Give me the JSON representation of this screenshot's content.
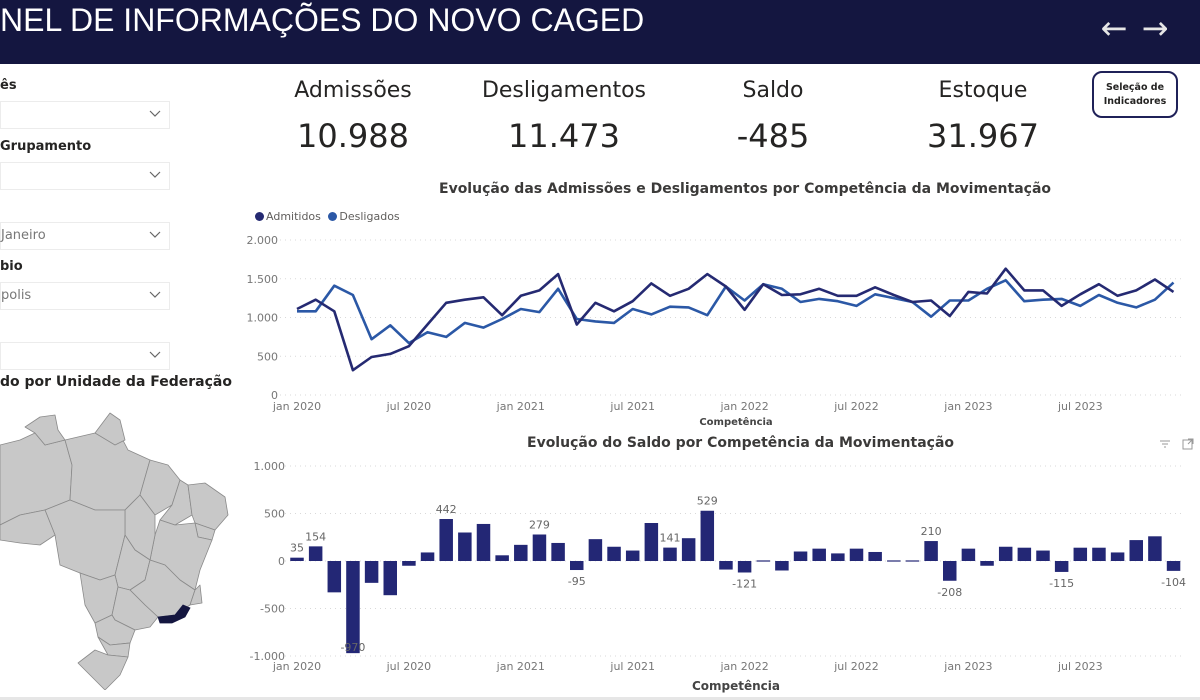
{
  "header": {
    "title": "NEL DE INFORMAÇÕES DO NOVO CAGED",
    "back_icon": "←",
    "forward_icon": "→"
  },
  "filters": [
    {
      "label": "ês",
      "value": ""
    },
    {
      "label": "Grupamento",
      "value": ""
    },
    {
      "label": "",
      "value": "Janeiro"
    },
    {
      "label": "bio",
      "value": "polis"
    },
    {
      "label": "",
      "value": ""
    }
  ],
  "map": {
    "title": "do por Unidade da Federação",
    "highlighted_state": "Rio de Janeiro",
    "base_color": "#c8c8c8",
    "highlight_color": "#141640"
  },
  "kpis": [
    {
      "label": "Admissões",
      "value": "10.988"
    },
    {
      "label": "Desligamentos",
      "value": "11.473"
    },
    {
      "label": "Saldo",
      "value": "-485"
    },
    {
      "label": "Estoque",
      "value": "31.967"
    }
  ],
  "indicator_button": {
    "line1": "Seleção de",
    "line2": "Indicadores"
  },
  "colors": {
    "admitidos": "#252a72",
    "desligados": "#2b58a6",
    "bars": "#232775",
    "header_bg": "#141640"
  },
  "chart_data": [
    {
      "type": "line",
      "title": "Evolução das Admissões e Desligamentos por Competência da Movimentação",
      "xlabel": "Competência",
      "ylabel": "",
      "ylim": [
        0,
        2000
      ],
      "yticks": [
        "0",
        "500",
        "1.000",
        "1.500",
        "2.000"
      ],
      "ytick_values": [
        0,
        500,
        1000,
        1500,
        2000
      ],
      "xticks": [
        "jan 2020",
        "jul 2020",
        "jan 2021",
        "jul 2021",
        "jan 2022",
        "jul 2022",
        "jan 2023",
        "jul 2023"
      ],
      "xtick_month_index": [
        0,
        6,
        12,
        18,
        24,
        30,
        36,
        42
      ],
      "legend_position": "top-left",
      "grid": true,
      "series": [
        {
          "name": "Admitidos",
          "values": [
            1110,
            1230,
            1080,
            320,
            490,
            530,
            630,
            910,
            1190,
            1230,
            1260,
            1030,
            1280,
            1350,
            1560,
            910,
            1190,
            1080,
            1210,
            1440,
            1280,
            1370,
            1560,
            1400,
            1100,
            1430,
            1290,
            1300,
            1370,
            1280,
            1280,
            1390,
            1290,
            1200,
            1220,
            1020,
            1330,
            1310,
            1630,
            1350,
            1350,
            1150,
            1300,
            1430,
            1280,
            1350,
            1490,
            1330
          ]
        },
        {
          "name": "Desligados",
          "values": [
            1080,
            1080,
            1410,
            1290,
            720,
            900,
            670,
            810,
            750,
            930,
            870,
            980,
            1110,
            1070,
            1370,
            980,
            950,
            930,
            1110,
            1040,
            1140,
            1130,
            1030,
            1400,
            1220,
            1430,
            1370,
            1200,
            1240,
            1210,
            1150,
            1300,
            1250,
            1200,
            1010,
            1220,
            1220,
            1370,
            1480,
            1210,
            1230,
            1240,
            1150,
            1290,
            1190,
            1130,
            1230,
            1450
          ]
        }
      ]
    },
    {
      "type": "bar",
      "title": "Evolução do Saldo por Competência da Movimentação",
      "xlabel": "Competência",
      "ylabel": "",
      "ylim": [
        -1000,
        1000
      ],
      "yticks": [
        "-1.000",
        "-500",
        "0",
        "500",
        "1.000"
      ],
      "ytick_values": [
        -1000,
        -500,
        0,
        500,
        1000
      ],
      "xticks": [
        "jan 2020",
        "jul 2020",
        "jan 2021",
        "jul 2021",
        "jan 2022",
        "jul 2022",
        "jan 2023",
        "jul 2023"
      ],
      "xtick_month_index": [
        0,
        6,
        12,
        18,
        24,
        30,
        36,
        42
      ],
      "grid": true,
      "values": [
        35,
        154,
        -330,
        -970,
        -230,
        -360,
        -50,
        90,
        442,
        300,
        390,
        60,
        170,
        279,
        190,
        -95,
        230,
        150,
        110,
        400,
        141,
        240,
        529,
        -90,
        -121,
        -5,
        -100,
        100,
        130,
        80,
        130,
        95,
        5,
        5,
        210,
        -208,
        130,
        -50,
        150,
        140,
        110,
        -115,
        140,
        140,
        90,
        220,
        260,
        -104
      ],
      "data_labels": {
        "0": "35",
        "1": "154",
        "3": "-970",
        "8": "442",
        "13": "279",
        "15": "-95",
        "20": "141",
        "22": "529",
        "24": "-121",
        "34": "210",
        "35": "-208",
        "41": "-115",
        "47": "-104"
      }
    }
  ],
  "visual_icons": [
    "filter-icon",
    "focus-mode-icon"
  ]
}
